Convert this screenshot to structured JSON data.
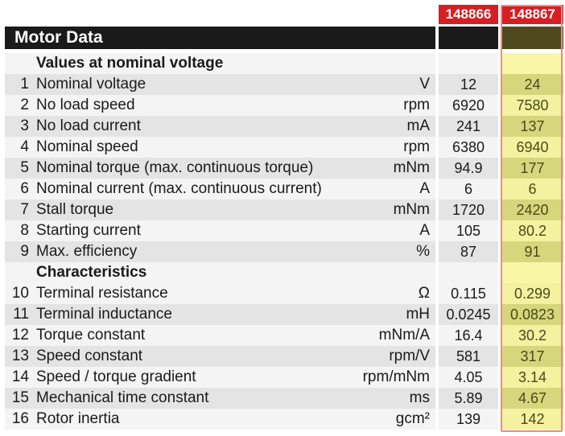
{
  "product_numbers": [
    "148866",
    "148867"
  ],
  "title": "Motor Data",
  "rows": [
    {
      "type": "section",
      "label": "Values at nominal voltage"
    },
    {
      "type": "data",
      "num": "1",
      "label": "Nominal voltage",
      "unit": "V",
      "values": [
        "12",
        "24"
      ]
    },
    {
      "type": "data",
      "num": "2",
      "label": "No load speed",
      "unit": "rpm",
      "values": [
        "6920",
        "7580"
      ]
    },
    {
      "type": "data",
      "num": "3",
      "label": "No load current",
      "unit": "mA",
      "values": [
        "241",
        "137"
      ]
    },
    {
      "type": "data",
      "num": "4",
      "label": "Nominal speed",
      "unit": "rpm",
      "values": [
        "6380",
        "6940"
      ]
    },
    {
      "type": "data",
      "num": "5",
      "label": "Nominal torque (max. continuous torque)",
      "unit": "mNm",
      "values": [
        "94.9",
        "177"
      ]
    },
    {
      "type": "data",
      "num": "6",
      "label": "Nominal current (max. continuous current)",
      "unit": "A",
      "values": [
        "6",
        "6"
      ]
    },
    {
      "type": "data",
      "num": "7",
      "label": "Stall torque",
      "unit": "mNm",
      "values": [
        "1720",
        "2420"
      ]
    },
    {
      "type": "data",
      "num": "8",
      "label": "Starting current",
      "unit": "A",
      "values": [
        "105",
        "80.2"
      ]
    },
    {
      "type": "data",
      "num": "9",
      "label": "Max. efficiency",
      "unit": "%",
      "values": [
        "87",
        "91"
      ]
    },
    {
      "type": "section",
      "label": "Characteristics"
    },
    {
      "type": "data",
      "num": "10",
      "label": "Terminal resistance",
      "unit": "Ω",
      "values": [
        "0.115",
        "0.299"
      ]
    },
    {
      "type": "data",
      "num": "11",
      "label": "Terminal inductance",
      "unit": "mH",
      "values": [
        "0.0245",
        "0.0823"
      ]
    },
    {
      "type": "data",
      "num": "12",
      "label": "Torque constant",
      "unit": "mNm/A",
      "values": [
        "16.4",
        "30.2"
      ]
    },
    {
      "type": "data",
      "num": "13",
      "label": "Speed constant",
      "unit": "rpm/V",
      "values": [
        "581",
        "317"
      ]
    },
    {
      "type": "data",
      "num": "14",
      "label": "Speed / torque gradient",
      "unit": "rpm/mNm",
      "values": [
        "4.05",
        "3.14"
      ]
    },
    {
      "type": "data",
      "num": "15",
      "label": "Mechanical time constant",
      "unit": "ms",
      "values": [
        "5.89",
        "4.67"
      ]
    },
    {
      "type": "data",
      "num": "16",
      "label": "Rotor inertia",
      "unit": "gcm²",
      "values": [
        "139",
        "142"
      ]
    }
  ],
  "colors": {
    "header_red": "#d61e23",
    "title_black": "#1a1a1a",
    "highlight_yellow": "#f4f2a0",
    "highlight_outline": "#f08a8a"
  }
}
